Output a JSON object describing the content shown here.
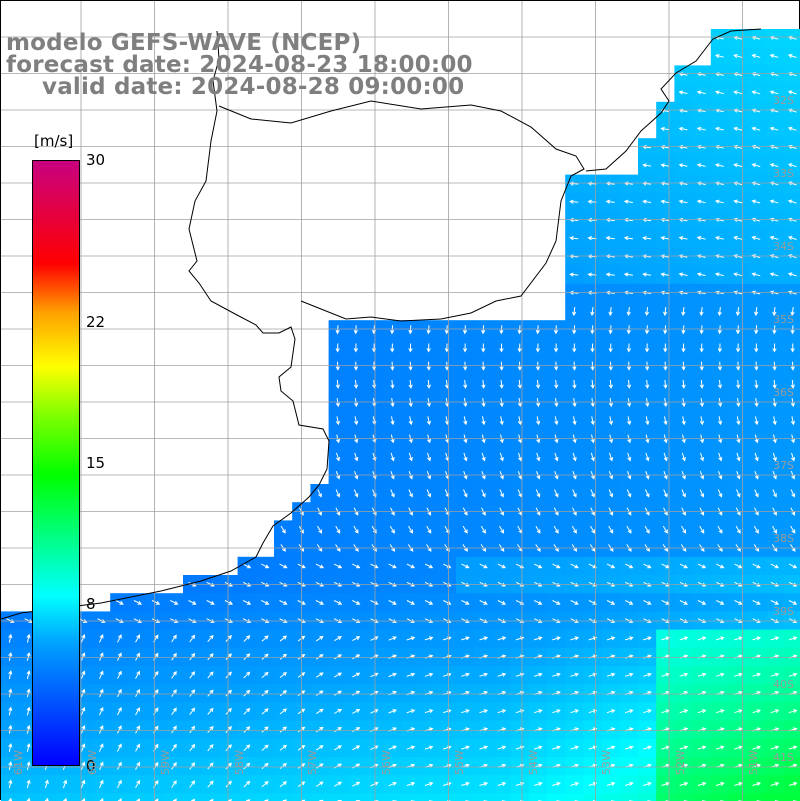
{
  "title": {
    "line1": "modelo GEFS-WAVE (NCEP)",
    "line2": "forecast date: 2024-08-23 18:00:00",
    "line3": "valid date: 2024-08-28 09:00:00"
  },
  "colorbar": {
    "unit": "[m/s]",
    "min": 0,
    "max": 30,
    "ticks": [
      "30",
      "22",
      "15",
      "8",
      "0"
    ],
    "tick_values": [
      30,
      22,
      15,
      8,
      0
    ],
    "colors": [
      "#0000ff",
      "#00a0ff",
      "#00ffff",
      "#00ff80",
      "#00ff00",
      "#80ff00",
      "#ffff00",
      "#ffa000",
      "#ff0000",
      "#c80080"
    ]
  },
  "map": {
    "land_color": "#ffffff",
    "grid_color": "#a0a0a0",
    "coast_color": "#000000",
    "arrow_color": "#ffffff",
    "lat_labels": [
      "32S",
      "33S",
      "34S",
      "35S",
      "36S",
      "37S",
      "38S",
      "39S",
      "40S",
      "41S"
    ],
    "lon_labels": [
      "61W",
      "60W",
      "59W",
      "58W",
      "57W",
      "56W",
      "55W",
      "54W",
      "53W",
      "52W",
      "51W"
    ]
  }
}
